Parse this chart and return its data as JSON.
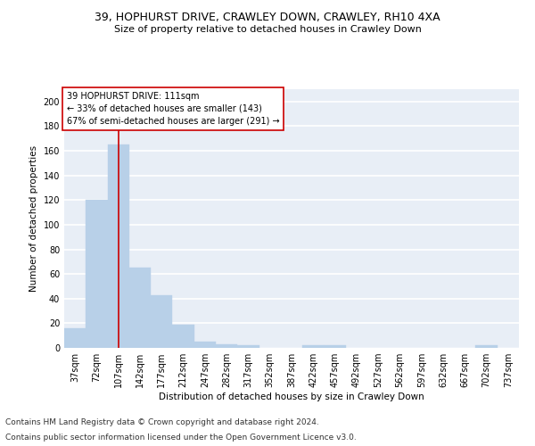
{
  "title1": "39, HOPHURST DRIVE, CRAWLEY DOWN, CRAWLEY, RH10 4XA",
  "title2": "Size of property relative to detached houses in Crawley Down",
  "xlabel": "Distribution of detached houses by size in Crawley Down",
  "ylabel": "Number of detached properties",
  "bar_labels": [
    "37sqm",
    "72sqm",
    "107sqm",
    "142sqm",
    "177sqm",
    "212sqm",
    "247sqm",
    "282sqm",
    "317sqm",
    "352sqm",
    "387sqm",
    "422sqm",
    "457sqm",
    "492sqm",
    "527sqm",
    "562sqm",
    "597sqm",
    "632sqm",
    "667sqm",
    "702sqm",
    "737sqm"
  ],
  "bar_values": [
    16,
    120,
    165,
    65,
    43,
    19,
    5,
    3,
    2,
    0,
    0,
    2,
    2,
    0,
    0,
    0,
    0,
    0,
    0,
    2,
    0
  ],
  "bar_color": "#b8d0e8",
  "bar_edgecolor": "#b8d0e8",
  "vline_x": 2.0,
  "vline_color": "#cc0000",
  "annotation_text": "39 HOPHURST DRIVE: 111sqm\n← 33% of detached houses are smaller (143)\n67% of semi-detached houses are larger (291) →",
  "annotation_box_color": "#ffffff",
  "annotation_box_edgecolor": "#cc0000",
  "ylim": [
    0,
    210
  ],
  "yticks": [
    0,
    20,
    40,
    60,
    80,
    100,
    120,
    140,
    160,
    180,
    200
  ],
  "footer1": "Contains HM Land Registry data © Crown copyright and database right 2024.",
  "footer2": "Contains public sector information licensed under the Open Government Licence v3.0.",
  "bg_color": "#e8eef6",
  "grid_color": "#ffffff",
  "title_fontsize": 9,
  "subtitle_fontsize": 8,
  "axis_label_fontsize": 7.5,
  "tick_fontsize": 7,
  "annotation_fontsize": 7,
  "footer_fontsize": 6.5
}
